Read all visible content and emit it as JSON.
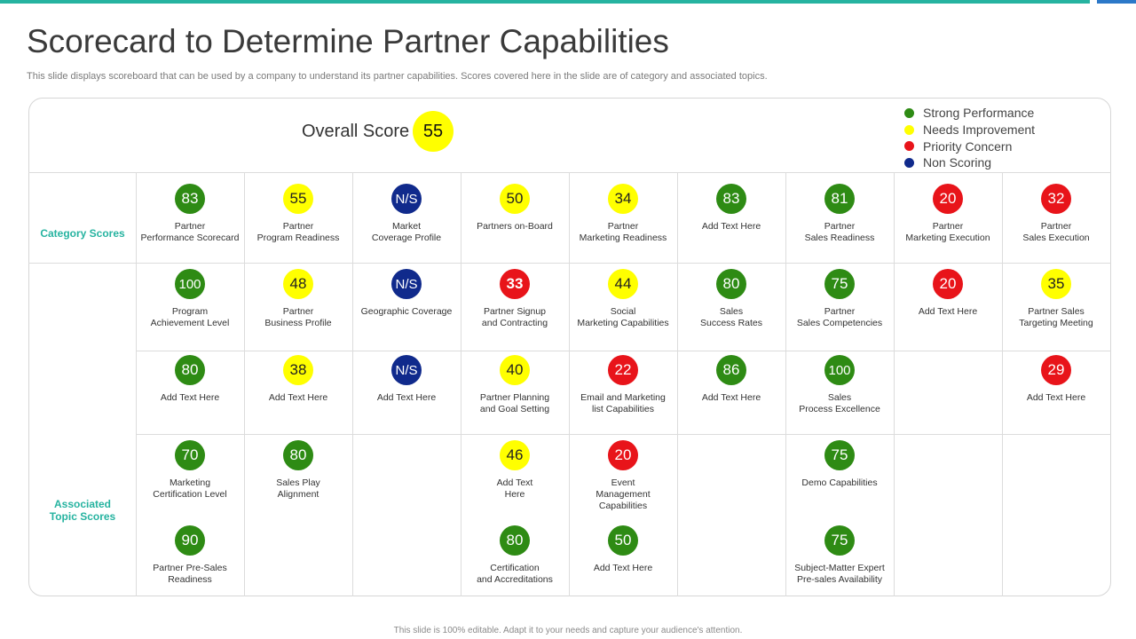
{
  "page": {
    "title": "Scorecard to Determine Partner Capabilities",
    "subtitle": "This slide displays scoreboard that can be used by a company to understand its partner capabilities. Scores covered here in the slide are of category and associated topics.",
    "footer": "This slide is 100% editable. Adapt it to your needs and capture your audience's attention."
  },
  "colors": {
    "accent_teal": "#26b3a0",
    "accent_blue": "#2c78c8",
    "green": "#2e8b14",
    "yellow": "#ffff00",
    "red": "#e8141a",
    "navy": "#102a8c"
  },
  "overall": {
    "label": "Overall Score",
    "value": "55",
    "status": "yellow"
  },
  "legend": [
    {
      "label": "Strong Performance",
      "color": "green"
    },
    {
      "label": "Needs Improvement",
      "color": "yellow"
    },
    {
      "label": "Priority Concern",
      "color": "red"
    },
    {
      "label": "Non Scoring",
      "color": "navy"
    }
  ],
  "row_labels": {
    "category": "Category Scores",
    "topics": "Associated\nTopic Scores"
  },
  "category_scores": [
    {
      "value": "83",
      "status": "green",
      "label": "Partner\nPerformance Scorecard"
    },
    {
      "value": "55",
      "status": "yellow",
      "label": "Partner\nProgram Readiness"
    },
    {
      "value": "N/S",
      "status": "navy",
      "label": "Market\nCoverage Profile"
    },
    {
      "value": "50",
      "status": "yellow",
      "label": "Partners on-Board"
    },
    {
      "value": "34",
      "status": "yellow",
      "label": "Partner\nMarketing Readiness"
    },
    {
      "value": "83",
      "status": "green",
      "label": "Add Text Here"
    },
    {
      "value": "81",
      "status": "green",
      "label": "Partner\nSales Readiness"
    },
    {
      "value": "20",
      "status": "red",
      "label": "Partner\nMarketing Execution"
    },
    {
      "value": "32",
      "status": "red",
      "label": "Partner\nSales Execution"
    }
  ],
  "topic_scores": [
    [
      {
        "value": "100",
        "status": "green",
        "label": "Program\nAchievement Level"
      },
      {
        "value": "80",
        "status": "green",
        "label": "Add Text Here"
      },
      {
        "value": "70",
        "status": "green",
        "label": "Marketing\nCertification Level"
      },
      {
        "value": "90",
        "status": "green",
        "label": "Partner Pre-Sales\nReadiness"
      }
    ],
    [
      {
        "value": "48",
        "status": "yellow",
        "label": "Partner\nBusiness Profile"
      },
      {
        "value": "38",
        "status": "yellow",
        "label": "Add Text Here"
      },
      {
        "value": "80",
        "status": "green",
        "label": "Sales Play\nAlignment"
      }
    ],
    [
      {
        "value": "N/S",
        "status": "navy",
        "label": "Geographic Coverage"
      },
      {
        "value": "N/S",
        "status": "navy",
        "label": "Add Text Here"
      }
    ],
    [
      {
        "value": "33",
        "status": "red",
        "label": "Partner Signup\nand Contracting"
      },
      {
        "value": "40",
        "status": "yellow",
        "label": "Partner Planning\nand Goal Setting"
      },
      {
        "value": "46",
        "status": "yellow",
        "label": "Add Text\nHere"
      },
      {
        "value": "80",
        "status": "green",
        "label": "Certification\nand Accreditations"
      }
    ],
    [
      {
        "value": "44",
        "status": "yellow",
        "label": "Social\nMarketing Capabilities"
      },
      {
        "value": "22",
        "status": "red",
        "label": "Email  and Marketing\nlist Capabilities"
      },
      {
        "value": "20",
        "status": "red",
        "label": "Event\nManagement\nCapabilities"
      },
      {
        "value": "50",
        "status": "green",
        "label": "Add Text Here"
      }
    ],
    [
      {
        "value": "80",
        "status": "green",
        "label": "Sales\nSuccess Rates"
      },
      {
        "value": "86",
        "status": "green",
        "label": "Add Text Here"
      }
    ],
    [
      {
        "value": "75",
        "status": "green",
        "label": "Partner\nSales Competencies"
      },
      {
        "value": "100",
        "status": "green",
        "label": "Sales\nProcess Excellence"
      },
      {
        "value": "75",
        "status": "green",
        "label": "Demo Capabilities"
      },
      {
        "value": "75",
        "status": "green",
        "label": "Subject-Matter Expert\nPre-sales Availability"
      }
    ],
    [
      {
        "value": "20",
        "status": "red",
        "label": "Add Text Here"
      }
    ],
    [
      {
        "value": "35",
        "status": "yellow",
        "label": "Partner Sales\nTargeting Meeting"
      },
      {
        "value": "29",
        "status": "red",
        "label": "Add Text Here"
      }
    ]
  ]
}
